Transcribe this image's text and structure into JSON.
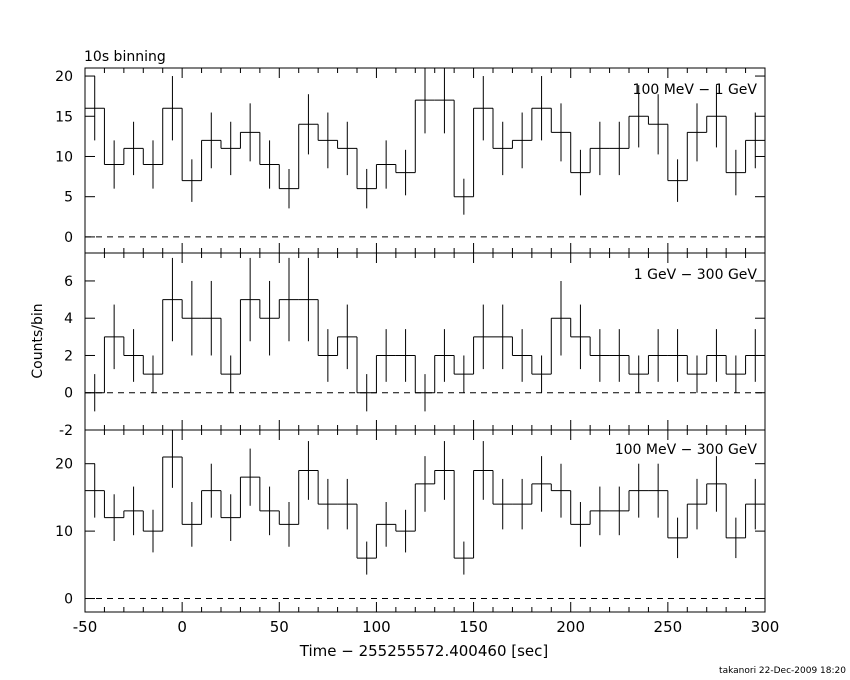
{
  "title": "10s binning",
  "xlabel": "Time − 255255572.400460 [sec]",
  "ylabel": "Counts/bin",
  "footer": "takanori 22-Dec-2009 18:20",
  "chart_data": [
    {
      "type": "histogram",
      "name": "100 MeV − 1 GeV",
      "xlim": [
        -50,
        300
      ],
      "ylim": [
        -2,
        21
      ],
      "yticks_major": [
        0,
        5,
        10,
        15,
        20
      ],
      "zero_line": "dashed",
      "x": [
        -45,
        -35,
        -25,
        -15,
        -5,
        5,
        15,
        25,
        35,
        45,
        55,
        65,
        75,
        85,
        95,
        105,
        115,
        125,
        135,
        145,
        155,
        165,
        175,
        185,
        195,
        205,
        215,
        225,
        235,
        245,
        255,
        265,
        275,
        285,
        295
      ],
      "values": [
        16,
        9,
        11,
        9,
        16,
        7,
        12,
        11,
        13,
        9,
        6,
        14,
        12,
        11,
        6,
        9,
        8,
        17,
        17,
        5,
        16,
        11,
        12,
        16,
        13,
        8,
        11,
        11,
        15,
        14,
        7,
        13,
        15,
        8,
        12
      ]
    },
    {
      "type": "histogram",
      "name": "1 GeV − 300 GeV",
      "xlim": [
        -50,
        300
      ],
      "ylim": [
        -2,
        7.5
      ],
      "yticks_major": [
        -2,
        0,
        2,
        4,
        6
      ],
      "zero_line": "dashed",
      "x": [
        -45,
        -35,
        -25,
        -15,
        -5,
        5,
        15,
        25,
        35,
        45,
        55,
        65,
        75,
        85,
        95,
        105,
        115,
        125,
        135,
        145,
        155,
        165,
        175,
        185,
        195,
        205,
        215,
        225,
        235,
        245,
        255,
        265,
        275,
        285,
        295
      ],
      "values": [
        0,
        3,
        2,
        1,
        5,
        4,
        4,
        1,
        5,
        4,
        5,
        5,
        2,
        3,
        0,
        2,
        2,
        0,
        2,
        1,
        3,
        3,
        2,
        1,
        4,
        3,
        2,
        2,
        1,
        2,
        2,
        1,
        2,
        1,
        2
      ]
    },
    {
      "type": "histogram",
      "name": "100 MeV − 300 GeV",
      "xlim": [
        -50,
        300
      ],
      "ylim": [
        -2,
        25
      ],
      "yticks_major": [
        0,
        10,
        20
      ],
      "zero_line": "dashed",
      "x": [
        -45,
        -35,
        -25,
        -15,
        -5,
        5,
        15,
        25,
        35,
        45,
        55,
        65,
        75,
        85,
        95,
        105,
        115,
        125,
        135,
        145,
        155,
        165,
        175,
        185,
        195,
        205,
        215,
        225,
        235,
        245,
        255,
        265,
        275,
        285,
        295
      ],
      "values": [
        16,
        12,
        13,
        10,
        21,
        11,
        16,
        12,
        18,
        13,
        11,
        19,
        14,
        14,
        6,
        11,
        10,
        17,
        19,
        6,
        19,
        14,
        14,
        17,
        16,
        11,
        13,
        13,
        16,
        16,
        9,
        14,
        17,
        9,
        14
      ]
    }
  ],
  "xticks": [
    "-50",
    "0",
    "50",
    "100",
    "150",
    "200",
    "250",
    "300"
  ]
}
